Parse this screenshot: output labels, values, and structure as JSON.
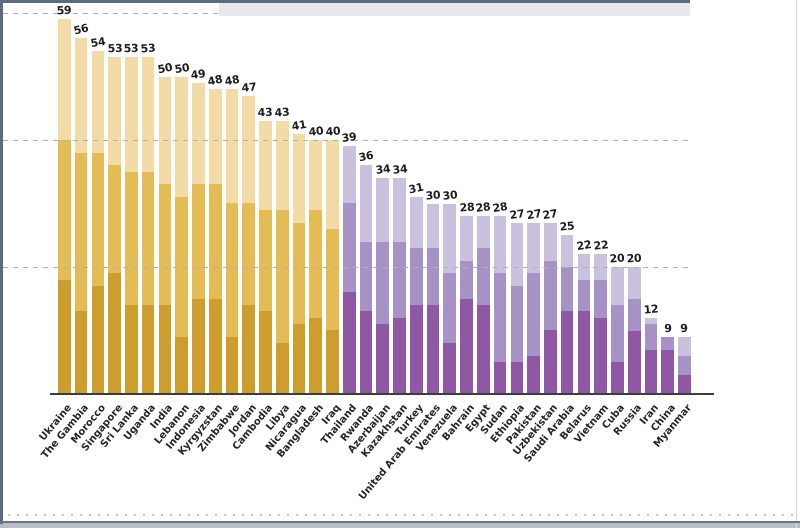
{
  "frame": {
    "border_color": "#5e6a84",
    "top_toolbar_color": "#e9e9eb",
    "right_border_color": "#d8d8da",
    "bottom_line_color": "#6a7389",
    "bottom_bar_color": "#b9bdc6",
    "dotted_separator_color": "#c6c6c6"
  },
  "axis": {
    "grid_color": "#b0b0b0",
    "axis_line_color": "#3d3d3d",
    "value_label_color": "#1c1c1c",
    "tick_label_color": "#262626"
  },
  "chart_data": {
    "type": "bar",
    "stacked": true,
    "title": "",
    "xlabel": "",
    "ylabel": "",
    "ylim": [
      0,
      60
    ],
    "gridlines": [
      20,
      40,
      60
    ],
    "gridline_style": "dashed",
    "legend": "none",
    "group_split_index": 17,
    "palettes": {
      "gold": {
        "light": "#f2dba6",
        "medium": "#e4bc55",
        "dark": "#cd9e2d"
      },
      "purple": {
        "light": "#c9c1dd",
        "medium": "#a792c5",
        "dark": "#8e58a5"
      }
    },
    "categories": [
      "Ukraine",
      "The Gambia",
      "Morocco",
      "Singapore",
      "Sri Lanka",
      "Uganda",
      "India",
      "Lebanon",
      "Indonesia",
      "Kyrgyzstan",
      "Zimbabwe",
      "Jordan",
      "Cambodia",
      "Libya",
      "Nicaragua",
      "Bangladesh",
      "Iraq",
      "Thailand",
      "Rwanda",
      "Azerbaijan",
      "Kazakhstan",
      "Turkey",
      "United Arab Emirates",
      "Venezuela",
      "Bahrain",
      "Egypt",
      "Sudan",
      "Ethiopia",
      "Pakistan",
      "Uzbekistan",
      "Saudi Arabia",
      "Belarus",
      "Vietnam",
      "Cuba",
      "Russia",
      "Iran",
      "China",
      "Myanmar"
    ],
    "series": [
      {
        "name": "bottom-dark-segment",
        "values": [
          18,
          13,
          17,
          19,
          14,
          14,
          14,
          9,
          15,
          15,
          9,
          14,
          13,
          8,
          11,
          12,
          10,
          16,
          13,
          11,
          12,
          14,
          14,
          8,
          15,
          14,
          5,
          5,
          6,
          10,
          13,
          13,
          12,
          5,
          10,
          7,
          7,
          3
        ]
      },
      {
        "name": "middle-medium-segment",
        "values": [
          22,
          25,
          21,
          17,
          21,
          21,
          19,
          22,
          18,
          18,
          21,
          16,
          16,
          21,
          16,
          17,
          16,
          14,
          11,
          13,
          12,
          9,
          9,
          11,
          6,
          9,
          14,
          12,
          13,
          11,
          7,
          5,
          6,
          9,
          5,
          4,
          2,
          3
        ]
      },
      {
        "name": "top-light-segment",
        "values": [
          19,
          18,
          16,
          17,
          18,
          18,
          17,
          19,
          16,
          15,
          18,
          17,
          14,
          14,
          14,
          11,
          14,
          9,
          12,
          10,
          10,
          8,
          7,
          11,
          7,
          5,
          9,
          10,
          8,
          6,
          5,
          4,
          4,
          6,
          5,
          1,
          0,
          3
        ]
      }
    ],
    "totals": [
      59,
      56,
      54,
      53,
      53,
      53,
      50,
      50,
      49,
      48,
      48,
      47,
      43,
      43,
      41,
      40,
      40,
      39,
      36,
      34,
      34,
      31,
      30,
      30,
      28,
      28,
      28,
      27,
      27,
      27,
      25,
      22,
      22,
      20,
      20,
      12,
      9,
      9
    ]
  }
}
